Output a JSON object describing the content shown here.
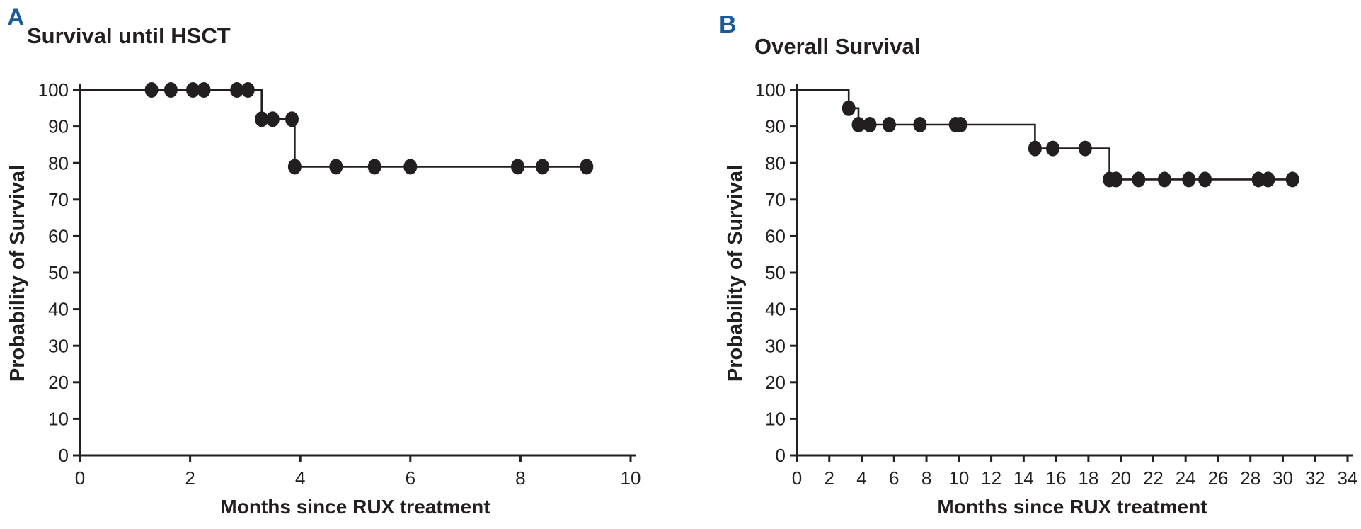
{
  "figure": {
    "background_color": "#ffffff",
    "text_color": "#231f20",
    "panel_letter_color": "#1a5a96"
  },
  "chart_data": [
    {
      "type": "line",
      "subtype": "kaplan-meier-step-curve",
      "panel_label": "A",
      "title": "Survival until HSCT",
      "xlabel": "Months since RUX treatment",
      "ylabel": "Probability of Survival",
      "xlim": [
        0,
        10
      ],
      "ylim": [
        0,
        100
      ],
      "xticks": [
        0,
        2,
        4,
        6,
        8,
        10
      ],
      "yticks": [
        0,
        10,
        20,
        30,
        40,
        50,
        60,
        70,
        80,
        90,
        100
      ],
      "grid": false,
      "legend": null,
      "line_color": "#231f20",
      "marker_style": "filled-circle",
      "step_points": [
        [
          0,
          100
        ],
        [
          3.3,
          100
        ],
        [
          3.3,
          92
        ],
        [
          3.9,
          92
        ],
        [
          3.9,
          79
        ],
        [
          9.25,
          79
        ]
      ],
      "censor_markers": [
        [
          1.3,
          100
        ],
        [
          1.65,
          100
        ],
        [
          2.05,
          100
        ],
        [
          2.25,
          100
        ],
        [
          2.85,
          100
        ],
        [
          3.05,
          100
        ],
        [
          3.3,
          92
        ],
        [
          3.5,
          92
        ],
        [
          3.85,
          92
        ],
        [
          3.9,
          79
        ],
        [
          4.65,
          79
        ],
        [
          5.35,
          79
        ],
        [
          6.0,
          79
        ],
        [
          7.95,
          79
        ],
        [
          8.4,
          79
        ],
        [
          9.2,
          79
        ]
      ]
    },
    {
      "type": "line",
      "subtype": "kaplan-meier-step-curve",
      "panel_label": "B",
      "title": "Overall Survival",
      "xlabel": "Months since RUX treatment",
      "ylabel": "Probability of Survival",
      "xlim": [
        0,
        34
      ],
      "ylim": [
        0,
        100
      ],
      "xticks": [
        0,
        2,
        4,
        6,
        8,
        10,
        12,
        14,
        16,
        18,
        20,
        22,
        24,
        26,
        28,
        30,
        32,
        34
      ],
      "yticks": [
        0,
        10,
        20,
        30,
        40,
        50,
        60,
        70,
        80,
        90,
        100
      ],
      "grid": false,
      "legend": null,
      "line_color": "#231f20",
      "marker_style": "filled-circle",
      "step_points": [
        [
          0,
          100
        ],
        [
          3.2,
          100
        ],
        [
          3.2,
          95
        ],
        [
          3.8,
          95
        ],
        [
          3.8,
          90.5
        ],
        [
          14.7,
          90.5
        ],
        [
          14.7,
          84
        ],
        [
          19.3,
          84
        ],
        [
          19.3,
          75.5
        ],
        [
          31,
          75.5
        ]
      ],
      "censor_markers": [
        [
          3.2,
          95
        ],
        [
          3.8,
          90.5
        ],
        [
          4.5,
          90.5
        ],
        [
          5.7,
          90.5
        ],
        [
          7.6,
          90.5
        ],
        [
          9.8,
          90.5
        ],
        [
          10.1,
          90.5
        ],
        [
          14.7,
          84
        ],
        [
          15.8,
          84
        ],
        [
          17.8,
          84
        ],
        [
          19.3,
          75.5
        ],
        [
          19.7,
          75.5
        ],
        [
          21.1,
          75.5
        ],
        [
          22.7,
          75.5
        ],
        [
          24.2,
          75.5
        ],
        [
          25.2,
          75.5
        ],
        [
          28.5,
          75.5
        ],
        [
          29.1,
          75.5
        ],
        [
          30.6,
          75.5
        ]
      ]
    }
  ]
}
